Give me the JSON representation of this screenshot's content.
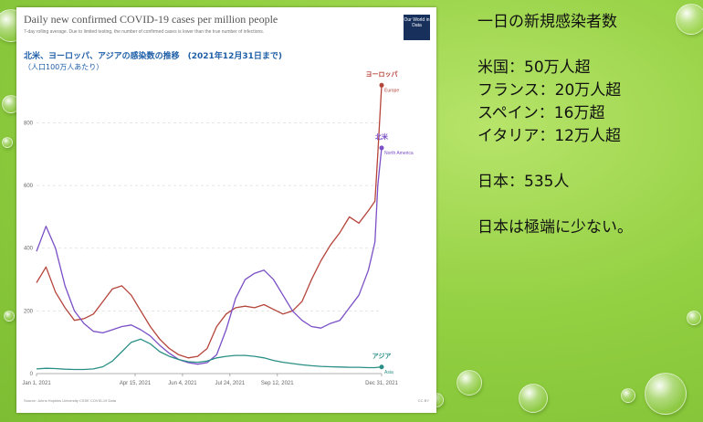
{
  "slide": {
    "heading": "一日の新規感染者数",
    "stats": [
      "米国：50万人超",
      "フランス：20万人超",
      "スペイン：16万超",
      "イタリア：12万人超"
    ],
    "japan": "日本：535人",
    "conclusion": "日本は極端に少ない。"
  },
  "panel": {
    "title": "Daily new confirmed COVID-19 cases per million people",
    "subtitle": "7-day rolling average. Due to limited testing, the number of confirmed cases is lower than the true number of infections.",
    "jp_title": "北米、ヨーロッパ、アジアの感染数の推移　(2021年12月31日まで)",
    "jp_subtitle": "（人口100万人あたり）",
    "logo": "Our World in Data",
    "source": "Source: Johns Hopkins University CSSE COVID-19 Data",
    "license": "CC BY"
  },
  "chart_data": {
    "type": "line",
    "title": "Daily new confirmed COVID-19 cases per million people",
    "ylim": [
      0,
      950
    ],
    "y_ticks": [
      0,
      200,
      400,
      600,
      800
    ],
    "x_tick_labels": [
      "Jan 1, 2021",
      "Apr 15, 2021",
      "Jun 4, 2021",
      "Jul 24, 2021",
      "Sep 12, 2021",
      "Dec 31, 2021"
    ],
    "grid": true,
    "x": [
      "2021-01-01",
      "2021-01-11",
      "2021-01-21",
      "2021-01-31",
      "2021-02-10",
      "2021-02-20",
      "2021-03-02",
      "2021-03-12",
      "2021-03-22",
      "2021-04-01",
      "2021-04-11",
      "2021-04-21",
      "2021-05-01",
      "2021-05-11",
      "2021-05-21",
      "2021-05-31",
      "2021-06-10",
      "2021-06-20",
      "2021-06-30",
      "2021-07-10",
      "2021-07-20",
      "2021-07-30",
      "2021-08-09",
      "2021-08-19",
      "2021-08-29",
      "2021-09-08",
      "2021-09-18",
      "2021-09-28",
      "2021-10-08",
      "2021-10-18",
      "2021-10-28",
      "2021-11-07",
      "2021-11-17",
      "2021-11-27",
      "2021-12-07",
      "2021-12-17",
      "2021-12-24",
      "2021-12-27",
      "2021-12-31"
    ],
    "series": [
      {
        "name": "Europe",
        "jp_label": "ヨーロッパ",
        "color": "#b5443a",
        "values": [
          290,
          340,
          260,
          210,
          170,
          175,
          190,
          230,
          270,
          280,
          250,
          200,
          150,
          110,
          80,
          60,
          50,
          55,
          80,
          150,
          190,
          210,
          215,
          210,
          220,
          205,
          190,
          200,
          230,
          300,
          360,
          410,
          450,
          500,
          480,
          520,
          550,
          700,
          920
        ]
      },
      {
        "name": "North America",
        "jp_label": "北米",
        "color": "#7b4fc6",
        "values": [
          390,
          470,
          400,
          280,
          200,
          160,
          135,
          130,
          140,
          150,
          155,
          140,
          120,
          90,
          65,
          45,
          35,
          30,
          35,
          60,
          140,
          240,
          300,
          320,
          330,
          300,
          250,
          200,
          170,
          150,
          145,
          160,
          170,
          210,
          250,
          330,
          420,
          600,
          720
        ]
      },
      {
        "name": "Asia",
        "jp_label": "アジア",
        "color": "#2a8f86",
        "values": [
          15,
          17,
          16,
          14,
          13,
          13,
          15,
          22,
          40,
          70,
          100,
          110,
          95,
          70,
          55,
          45,
          38,
          36,
          40,
          50,
          55,
          58,
          58,
          55,
          50,
          42,
          36,
          32,
          28,
          25,
          23,
          22,
          21,
          20,
          20,
          19,
          19,
          20,
          21
        ]
      }
    ]
  }
}
